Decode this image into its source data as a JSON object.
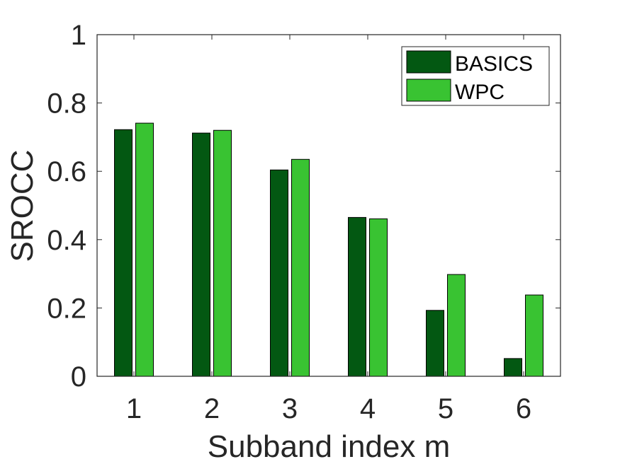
{
  "chart_data": {
    "type": "bar",
    "title": "",
    "xlabel": "Subband index m",
    "ylabel": "SROCC",
    "categories": [
      "1",
      "2",
      "3",
      "4",
      "5",
      "6"
    ],
    "ylim": [
      0,
      1
    ],
    "yticks": [
      "0",
      "0.2",
      "0.4",
      "0.6",
      "0.8",
      "1"
    ],
    "ytick_values": [
      0,
      0.2,
      0.4,
      0.6,
      0.8,
      1
    ],
    "grid": false,
    "legend_position": "top-right",
    "series": [
      {
        "name": "BASICS",
        "color": "#035812",
        "values": [
          0.722,
          0.712,
          0.604,
          0.465,
          0.193,
          0.052
        ]
      },
      {
        "name": "WPC",
        "color": "#39C332",
        "values": [
          0.741,
          0.72,
          0.635,
          0.461,
          0.298,
          0.238
        ]
      }
    ]
  }
}
